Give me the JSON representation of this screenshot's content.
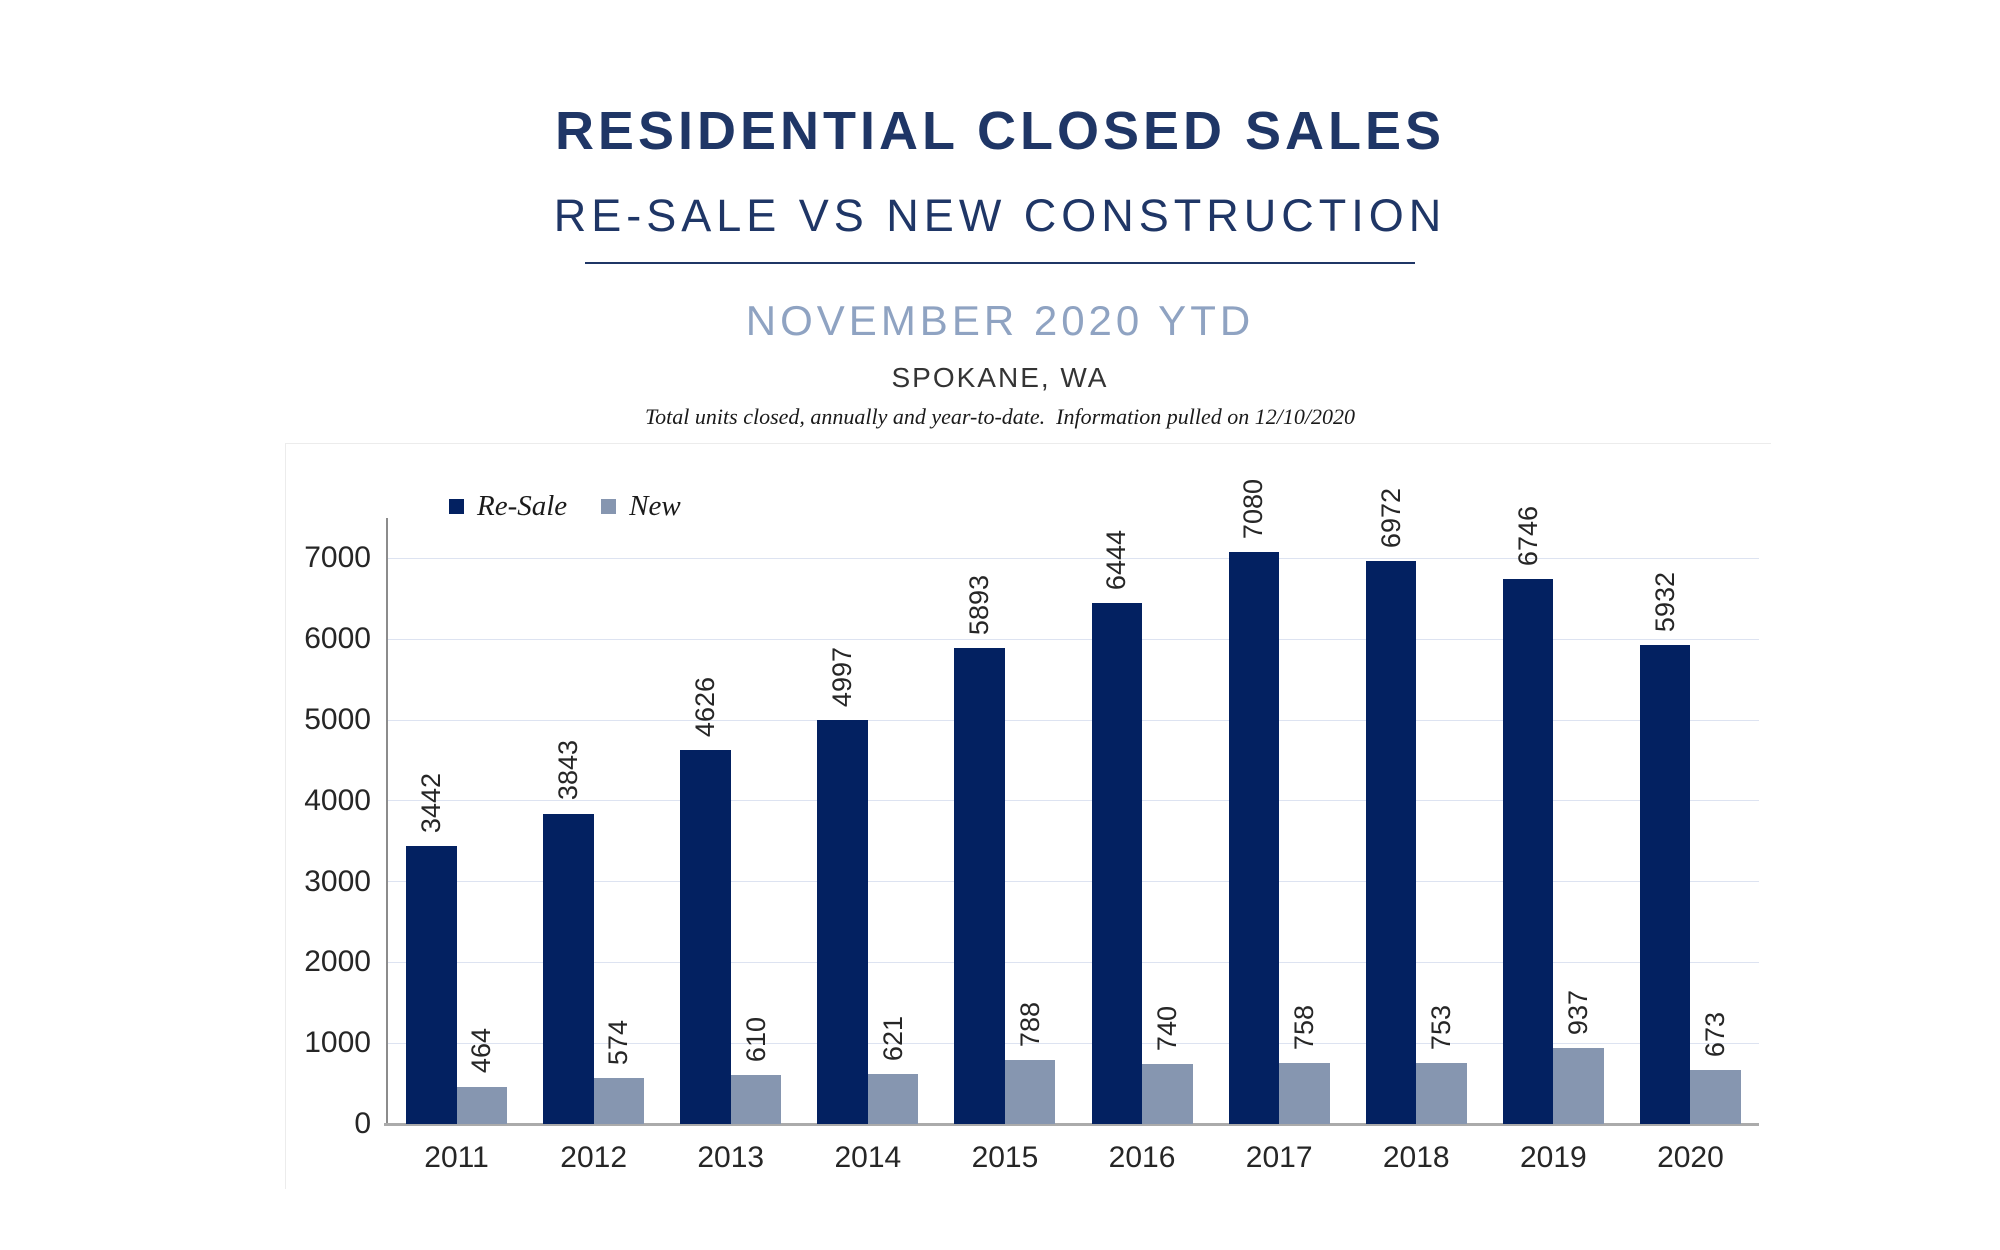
{
  "header": {
    "title": "RESIDENTIAL CLOSED SALES",
    "subtitle": "RE-SALE VS NEW CONSTRUCTION",
    "period": "NOVEMBER 2020 YTD",
    "location": "SPOKANE, WA",
    "note": "Total units closed, annually and year-to-date.  Information pulled on 12/10/2020"
  },
  "chart_data": {
    "type": "bar",
    "title": "Residential Closed Sales, Re-Sale vs New Construction, November 2020 YTD, Spokane WA",
    "categories": [
      "2011",
      "2012",
      "2013",
      "2014",
      "2015",
      "2016",
      "2017",
      "2018",
      "2019",
      "2020"
    ],
    "series": [
      {
        "name": "Re-Sale",
        "color": "#032161",
        "values": [
          3442,
          3843,
          4626,
          4997,
          5893,
          6444,
          7080,
          6972,
          6746,
          5932
        ]
      },
      {
        "name": "New",
        "color": "#8696B0",
        "values": [
          464,
          574,
          610,
          621,
          788,
          740,
          758,
          753,
          937,
          673
        ]
      }
    ],
    "xlabel": "",
    "ylabel": "",
    "ylim": [
      0,
      7500
    ],
    "yticks": [
      0,
      1000,
      2000,
      3000,
      4000,
      5000,
      6000,
      7000
    ],
    "grid": true,
    "legend_position": "top-left",
    "data_labels": "rotated-90-above-bars",
    "gridline_color": "#dde3f1",
    "y_axis_color": "#8c8c8c",
    "x_axis_color": "#ababab"
  }
}
